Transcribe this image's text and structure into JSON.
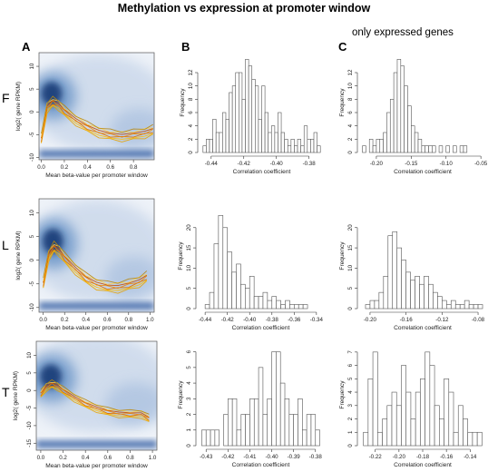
{
  "figure": {
    "title": "Methylation vs expression at promoter window",
    "subtitle": "only expressed genes",
    "column_labels": [
      "A",
      "B",
      "C"
    ],
    "row_labels": [
      "F",
      "L",
      "T"
    ]
  },
  "chart_data": [
    {
      "panel": "A-F",
      "type": "heatmap",
      "xlabel": "Mean beta-value per promoter window",
      "ylabel": "log2( gene RPKM)",
      "xticks": [
        "0.0",
        "0.2",
        "0.4",
        "0.6",
        "0.8"
      ],
      "xtick_values": [
        0,
        0.2,
        0.4,
        0.6,
        0.8
      ],
      "yticks": [
        "-10",
        "-5",
        "0",
        "5",
        "10"
      ],
      "ytick_values": [
        -10,
        -5,
        0,
        5,
        10
      ],
      "xlim": [
        -0.02,
        0.98
      ],
      "ylim": [
        -10.5,
        13
      ],
      "trend": {
        "x": [
          0,
          0.05,
          0.1,
          0.15,
          0.2,
          0.3,
          0.4,
          0.5,
          0.6,
          0.7,
          0.8,
          0.9,
          0.97
        ],
        "y": [
          -6,
          1,
          2.2,
          1.5,
          0.2,
          -1.8,
          -3.3,
          -4.4,
          -5,
          -5.3,
          -5,
          -4.6,
          -4
        ]
      }
    },
    {
      "panel": "B-F",
      "type": "bar",
      "xlabel": "Correlation coefficient",
      "ylabel": "Frequency",
      "xticks": [
        "-0.44",
        "-0.42",
        "-0.40",
        "-0.38"
      ],
      "xtick_values": [
        -0.44,
        -0.42,
        -0.4,
        -0.38
      ],
      "yticks": [
        "0",
        "2",
        "4",
        "6",
        "8",
        "10",
        "12"
      ],
      "ytick_values": [
        0,
        2,
        4,
        6,
        8,
        10,
        12
      ],
      "xlim": [
        -0.446,
        -0.372
      ],
      "ylim": [
        0,
        15
      ],
      "bin_start": -0.445,
      "bin_width": 0.002,
      "values": [
        1,
        2,
        2,
        5,
        3,
        3,
        6,
        5,
        9,
        10,
        12,
        12,
        8,
        14,
        13,
        11,
        10,
        5,
        10,
        6,
        3,
        4,
        3,
        6,
        3,
        2,
        1,
        2,
        1,
        2,
        1,
        4,
        2,
        2,
        3,
        1
      ]
    },
    {
      "panel": "C-F",
      "type": "bar",
      "xlabel": "Correlation coefficient",
      "ylabel": "Frequency",
      "xticks": [
        "-0.20",
        "-0.15",
        "-0.10",
        "-0.05"
      ],
      "xtick_values": [
        -0.2,
        -0.15,
        -0.1,
        -0.05
      ],
      "yticks": [
        "0",
        "2",
        "4",
        "6",
        "8",
        "10",
        "12"
      ],
      "ytick_values": [
        0,
        2,
        4,
        6,
        8,
        10,
        12
      ],
      "xlim": [
        -0.222,
        -0.045
      ],
      "ylim": [
        0,
        15
      ],
      "bin_start": -0.22,
      "bin_width": 0.005,
      "values": [
        1,
        0,
        2,
        1,
        2,
        2,
        3,
        6,
        8,
        12,
        14,
        13,
        10,
        7,
        4,
        3,
        2,
        1,
        1,
        1,
        1,
        0,
        1,
        0,
        1,
        0,
        1,
        0,
        1,
        1
      ]
    },
    {
      "panel": "A-L",
      "type": "heatmap",
      "xlabel": "Mean beta-value per promoter window",
      "ylabel": "log2( gene RPKM)",
      "xticks": [
        "0.0",
        "0.2",
        "0.4",
        "0.6",
        "0.8",
        "1.0"
      ],
      "xtick_values": [
        0,
        0.2,
        0.4,
        0.6,
        0.8,
        1
      ],
      "yticks": [
        "-10",
        "-5",
        "0",
        "5",
        "10"
      ],
      "ytick_values": [
        -10,
        -5,
        0,
        5,
        10
      ],
      "xlim": [
        -0.04,
        1.04
      ],
      "ylim": [
        -11,
        13
      ],
      "trend": {
        "x": [
          0,
          0.05,
          0.1,
          0.15,
          0.2,
          0.3,
          0.4,
          0.5,
          0.6,
          0.7,
          0.8,
          0.9,
          0.97
        ],
        "y": [
          -5,
          1,
          2.8,
          2,
          0.5,
          -1.8,
          -3.8,
          -5,
          -5.6,
          -5.7,
          -5.2,
          -4.5,
          -3.5
        ]
      }
    },
    {
      "panel": "B-L",
      "type": "bar",
      "xlabel": "Correlation coefficient",
      "ylabel": "Frequency",
      "xticks": [
        "-0.44",
        "-0.42",
        "-0.40",
        "-0.38",
        "-0.36",
        "-0.34"
      ],
      "xtick_values": [
        -0.44,
        -0.42,
        -0.4,
        -0.38,
        -0.36,
        -0.34
      ],
      "yticks": [
        "0",
        "5",
        "10",
        "15",
        "20"
      ],
      "ytick_values": [
        0,
        5,
        10,
        15,
        20
      ],
      "xlim": [
        -0.445,
        -0.335
      ],
      "ylim": [
        0,
        26
      ],
      "bin_start": -0.44,
      "bin_width": 0.004,
      "values": [
        1,
        4,
        16,
        23,
        20,
        14,
        9,
        11,
        6,
        5,
        8,
        3,
        3,
        4,
        2,
        3,
        2,
        1,
        2,
        1,
        1,
        1,
        1
      ]
    },
    {
      "panel": "C-L",
      "type": "bar",
      "xlabel": "Correlation coefficient",
      "ylabel": "Frequency",
      "xticks": [
        "-0.20",
        "-0.16",
        "-0.12",
        "-0.08"
      ],
      "xtick_values": [
        -0.2,
        -0.16,
        -0.12,
        -0.08
      ],
      "yticks": [
        "0",
        "5",
        "10",
        "15",
        "20"
      ],
      "ytick_values": [
        0,
        5,
        10,
        15,
        20
      ],
      "xlim": [
        -0.21,
        -0.073
      ],
      "ylim": [
        0,
        26
      ],
      "bin_start": -0.205,
      "bin_width": 0.005,
      "values": [
        1,
        2,
        2,
        4,
        8,
        18,
        19,
        15,
        12,
        9,
        7,
        8,
        6,
        8,
        6,
        4,
        3,
        2,
        1,
        2,
        1,
        1,
        2,
        1,
        1,
        1
      ]
    },
    {
      "panel": "A-T",
      "type": "heatmap",
      "xlabel": "Mean beta-value per promoter window",
      "ylabel": "log2( gene RPKM)",
      "xticks": [
        "0.0",
        "0.2",
        "0.4",
        "0.6",
        "0.8",
        "1.0"
      ],
      "xtick_values": [
        0,
        0.2,
        0.4,
        0.6,
        0.8,
        1
      ],
      "yticks": [
        "-15",
        "-10",
        "-5",
        "0",
        "5",
        "10"
      ],
      "ytick_values": [
        -15,
        -10,
        -5,
        0,
        5,
        10
      ],
      "xlim": [
        -0.04,
        1.04
      ],
      "ylim": [
        -17,
        14
      ],
      "trend": {
        "x": [
          0,
          0.05,
          0.1,
          0.15,
          0.2,
          0.3,
          0.4,
          0.5,
          0.6,
          0.7,
          0.8,
          0.9,
          0.97
        ],
        "y": [
          -1,
          1,
          1.8,
          1.2,
          0,
          -2,
          -3.8,
          -5,
          -6,
          -6.5,
          -6.7,
          -6.7,
          -8
        ]
      }
    },
    {
      "panel": "B-T",
      "type": "bar",
      "xlabel": "Correlation coefficient",
      "ylabel": "Frequency",
      "xticks": [
        "-0.43",
        "-0.42",
        "-0.41",
        "-0.40",
        "-0.39",
        "-0.38"
      ],
      "xtick_values": [
        -0.43,
        -0.42,
        -0.41,
        -0.4,
        -0.39,
        -0.38
      ],
      "yticks": [
        "0",
        "1",
        "2",
        "3",
        "4",
        "5",
        "6"
      ],
      "ytick_values": [
        0,
        1,
        2,
        3,
        4,
        5,
        6
      ],
      "xlim": [
        -0.433,
        -0.377
      ],
      "ylim": [
        0,
        6.5
      ],
      "bin_start": -0.432,
      "bin_width": 0.002,
      "values": [
        1,
        1,
        1,
        1,
        0,
        2,
        3,
        3,
        1,
        2,
        2,
        3,
        3,
        5,
        2,
        3,
        6,
        6,
        4,
        3,
        2,
        2,
        3,
        1,
        2,
        2,
        1
      ]
    },
    {
      "panel": "C-T",
      "type": "bar",
      "xlabel": "Correlation coefficient",
      "ylabel": "Frequency",
      "xticks": [
        "-0.22",
        "-0.20",
        "-0.18",
        "-0.16",
        "-0.14"
      ],
      "xtick_values": [
        -0.22,
        -0.2,
        -0.18,
        -0.16,
        -0.14
      ],
      "yticks": [
        "0",
        "1",
        "2",
        "3",
        "4",
        "5",
        "6",
        "7"
      ],
      "ytick_values": [
        0,
        1,
        2,
        3,
        4,
        5,
        6,
        7
      ],
      "xlim": [
        -0.232,
        -0.128
      ],
      "ylim": [
        0,
        7.6
      ],
      "bin_start": -0.23,
      "bin_width": 0.004,
      "values": [
        1,
        5,
        7,
        1,
        2,
        3,
        4,
        3,
        6,
        4,
        2,
        4,
        5,
        7,
        6,
        3,
        2,
        5,
        4,
        1,
        3,
        2,
        1,
        1,
        1
      ]
    }
  ]
}
